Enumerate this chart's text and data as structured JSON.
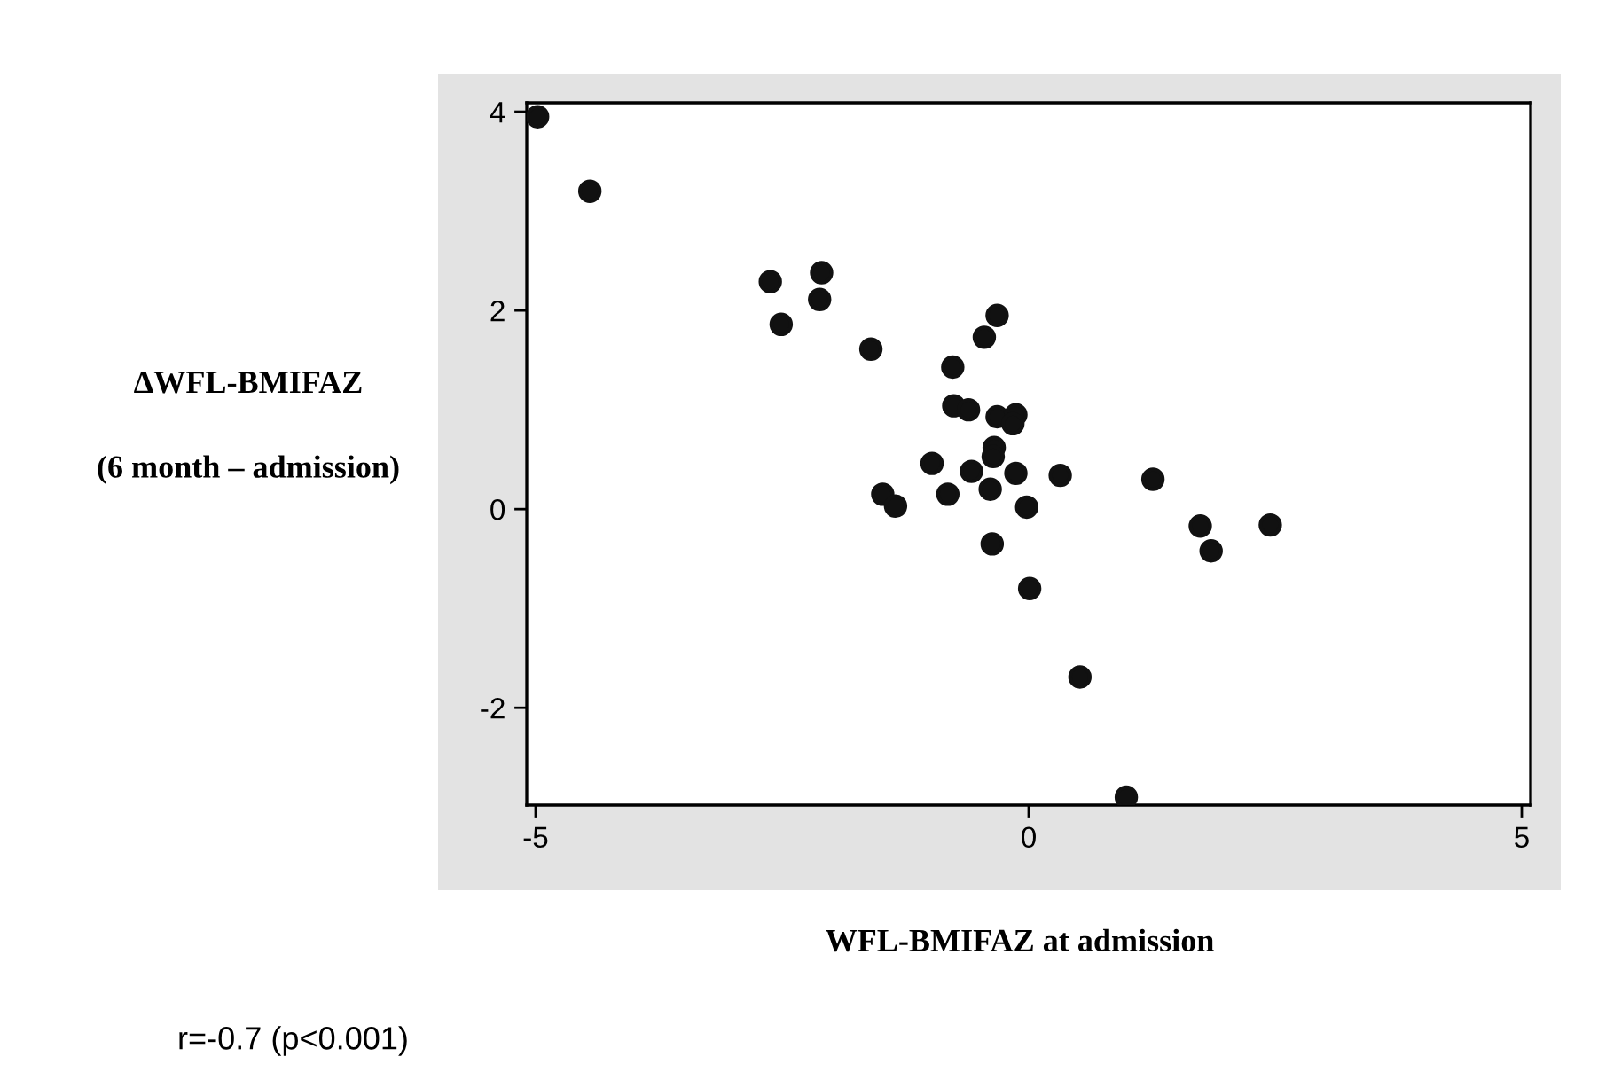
{
  "chart_data": {
    "type": "scatter",
    "xlabel": "WFL-BMIFAZ at admission",
    "ylabel": "ΔWFL-BMIFAZ\n\n(6 month – admission)",
    "annotations": [
      "r=-0.7 (p<0.001)"
    ],
    "x": [
      -4.98,
      -4.45,
      -2.62,
      -2.1,
      -2.51,
      -2.12,
      -1.6,
      -0.32,
      -0.45,
      -0.77,
      -0.76,
      -0.61,
      -0.32,
      -0.13,
      -0.16,
      -0.35,
      -0.36,
      -0.98,
      -0.58,
      -0.13,
      0.32,
      1.26,
      -1.48,
      -1.35,
      -0.82,
      -0.39,
      -0.02,
      -0.37,
      0.01,
      1.74,
      1.85,
      2.45,
      0.52,
      0.99
    ],
    "values": [
      3.95,
      3.2,
      2.29,
      2.38,
      1.86,
      2.11,
      1.61,
      1.95,
      1.73,
      1.43,
      1.04,
      1.0,
      0.93,
      0.95,
      0.86,
      0.62,
      0.53,
      0.46,
      0.38,
      0.36,
      0.34,
      0.3,
      0.15,
      0.03,
      0.15,
      0.2,
      0.02,
      -0.35,
      -0.8,
      -0.17,
      -0.42,
      -0.16,
      -1.69,
      -2.9
    ],
    "color": "#111111",
    "marker": "circle",
    "xlim": [
      -5.09,
      5.09
    ],
    "ylim": [
      -2.98,
      4.09
    ],
    "xticks": [
      -5,
      0,
      5
    ],
    "yticks": [
      -2,
      0,
      2,
      4
    ],
    "grid": false,
    "legend": false
  }
}
